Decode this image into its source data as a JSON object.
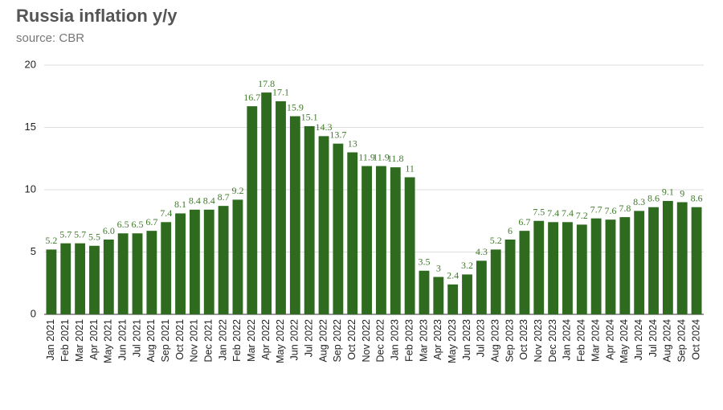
{
  "chart_data": {
    "type": "bar",
    "title": "Russia inflation y/y",
    "subtitle": "source: CBR",
    "categories": [
      "Jan 2021",
      "Feb 2021",
      "Mar 2021",
      "Apr 2021",
      "May 2021",
      "Jun 2021",
      "Jul 2021",
      "Aug 2021",
      "Sep 2021",
      "Oct 2021",
      "Nov 2021",
      "Dec 2021",
      "Jan 2022",
      "Feb 2022",
      "Mar 2022",
      "Apr 2022",
      "May 2022",
      "Jun 2022",
      "Jul 2022",
      "Aug 2022",
      "Sep 2022",
      "Oct 2022",
      "Nov 2022",
      "Dec 2022",
      "Jan 2023",
      "Feb 2023",
      "Mar 2023",
      "Apr 2023",
      "May 2023",
      "Jun 2023",
      "Jul 2023",
      "Aug 2023",
      "Sep 2023",
      "Oct 2023",
      "Nov 2023",
      "Dec 2023",
      "Jan 2024",
      "Feb 2024",
      "Mar 2024",
      "Apr 2024",
      "May 2024",
      "Jun 2024",
      "Jul 2024",
      "Aug 2024",
      "Sep 2024",
      "Oct 2024"
    ],
    "values": [
      5.2,
      5.7,
      5.7,
      5.5,
      6.0,
      6.5,
      6.5,
      6.7,
      7.4,
      8.1,
      8.4,
      8.4,
      8.7,
      9.2,
      16.7,
      17.8,
      17.1,
      15.9,
      15.1,
      14.3,
      13.7,
      13,
      11.9,
      11.9,
      11.8,
      11,
      3.5,
      3,
      2.4,
      3.2,
      4.3,
      5.2,
      6,
      6.7,
      7.5,
      7.4,
      7.4,
      7.2,
      7.7,
      7.6,
      7.8,
      8.3,
      8.6,
      9.1,
      9,
      8.6
    ],
    "value_labels": [
      "5.2",
      "5.7",
      "5.7",
      "5.5",
      "6.0",
      "6.5",
      "6.5",
      "6.7",
      "7.4",
      "8.1",
      "8.4",
      "8.4",
      "8.7",
      "9.2",
      "16.7",
      "17.8",
      "17.1",
      "15.9",
      "15.1",
      "14.3",
      "13.7",
      "13",
      "11.9",
      "11.9",
      "11.8",
      "11",
      "3.5",
      "3",
      "2.4",
      "3.2",
      "4.3",
      "5.2",
      "6",
      "6.7",
      "7.5",
      "7.4",
      "7.4",
      "7.2",
      "7.7",
      "7.6",
      "7.8",
      "8.3",
      "8.6",
      "9.1",
      "9",
      "8.6"
    ],
    "color": "#2e6b1f",
    "ylim": [
      0,
      20
    ],
    "yticks": [
      0,
      5,
      10,
      15,
      20
    ],
    "grid": true
  }
}
